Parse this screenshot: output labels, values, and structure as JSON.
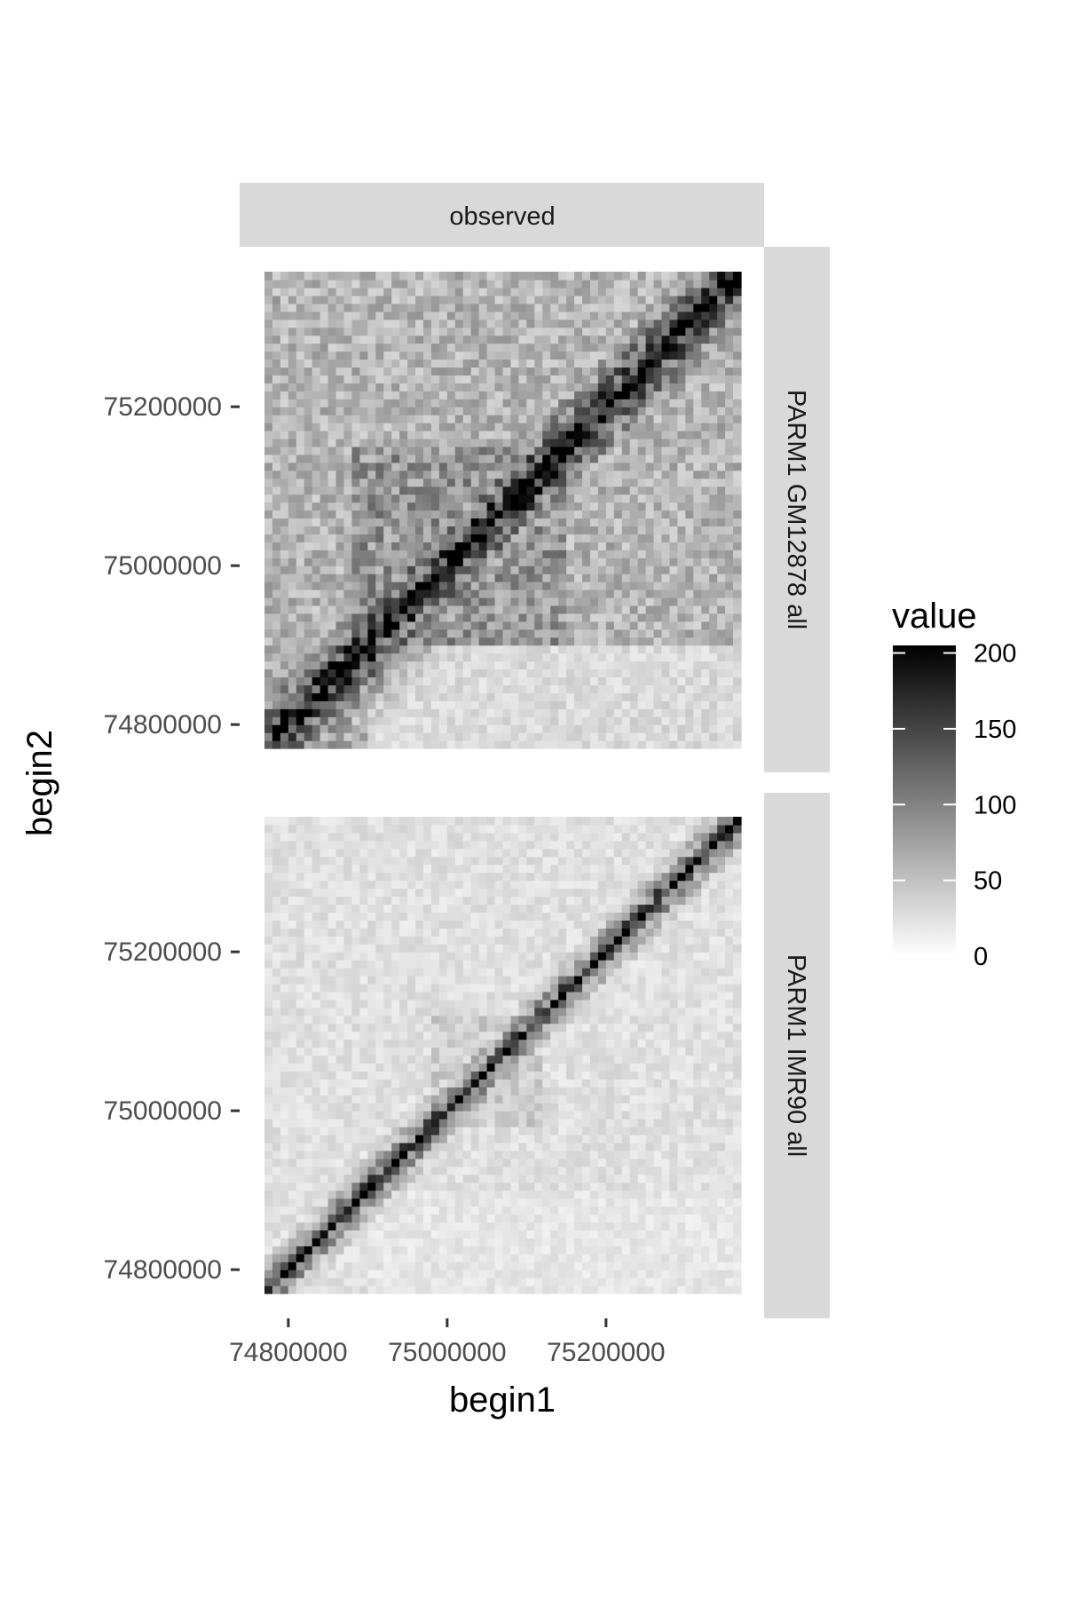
{
  "chart_data": {
    "type": "heatmap",
    "title": "",
    "column_facets": [
      "observed"
    ],
    "row_facets": [
      "PARM1 GM12878 all",
      "PARM1 IMR90 all"
    ],
    "xlabel": "begin1",
    "ylabel": "begin2",
    "x_ticks": [
      74800000,
      75000000,
      75200000
    ],
    "x_tick_labels": [
      "74800000",
      "75000000",
      "75200000"
    ],
    "y_ticks": [
      74800000,
      75000000,
      75200000
    ],
    "y_tick_labels": [
      "74800000",
      "75000000",
      "75200000"
    ],
    "xlim": [
      74770000,
      75370000
    ],
    "ylim": [
      74770000,
      75370000
    ],
    "bin_size": 10000,
    "bins_per_axis": 60,
    "legend": {
      "title": "value",
      "position": "right",
      "scale": "grey gradient",
      "low_color": "#ffffff",
      "high_color": "#000000",
      "range": [
        0,
        205
      ],
      "breaks": [
        0,
        50,
        100,
        150,
        200
      ],
      "break_labels": [
        "0",
        "50",
        "100",
        "150",
        "200"
      ]
    },
    "panels": [
      {
        "facet": "PARM1 GM12878 all",
        "pattern": {
          "diagonal": 230,
          "near_diag": 170,
          "decay_bins": 6,
          "background": 60,
          "tad_blocks": [
            {
              "from": 74770000,
              "to": 74880000,
              "value": 70
            },
            {
              "from": 74880000,
              "to": 75150000,
              "value": 85
            },
            {
              "from": 75150000,
              "to": 75370000,
              "value": 45
            }
          ],
          "lower_region_from": 74900000,
          "lower_region_value": 30
        }
      },
      {
        "facet": "PARM1 IMR90 all",
        "pattern": {
          "diagonal": 215,
          "near_diag": 120,
          "decay_bins": 2.5,
          "background": 25,
          "tad_blocks": [
            {
              "from": 74980000,
              "to": 75120000,
              "value": 40
            }
          ],
          "lower_region_from": 74900000,
          "lower_region_value": 20
        }
      }
    ]
  }
}
